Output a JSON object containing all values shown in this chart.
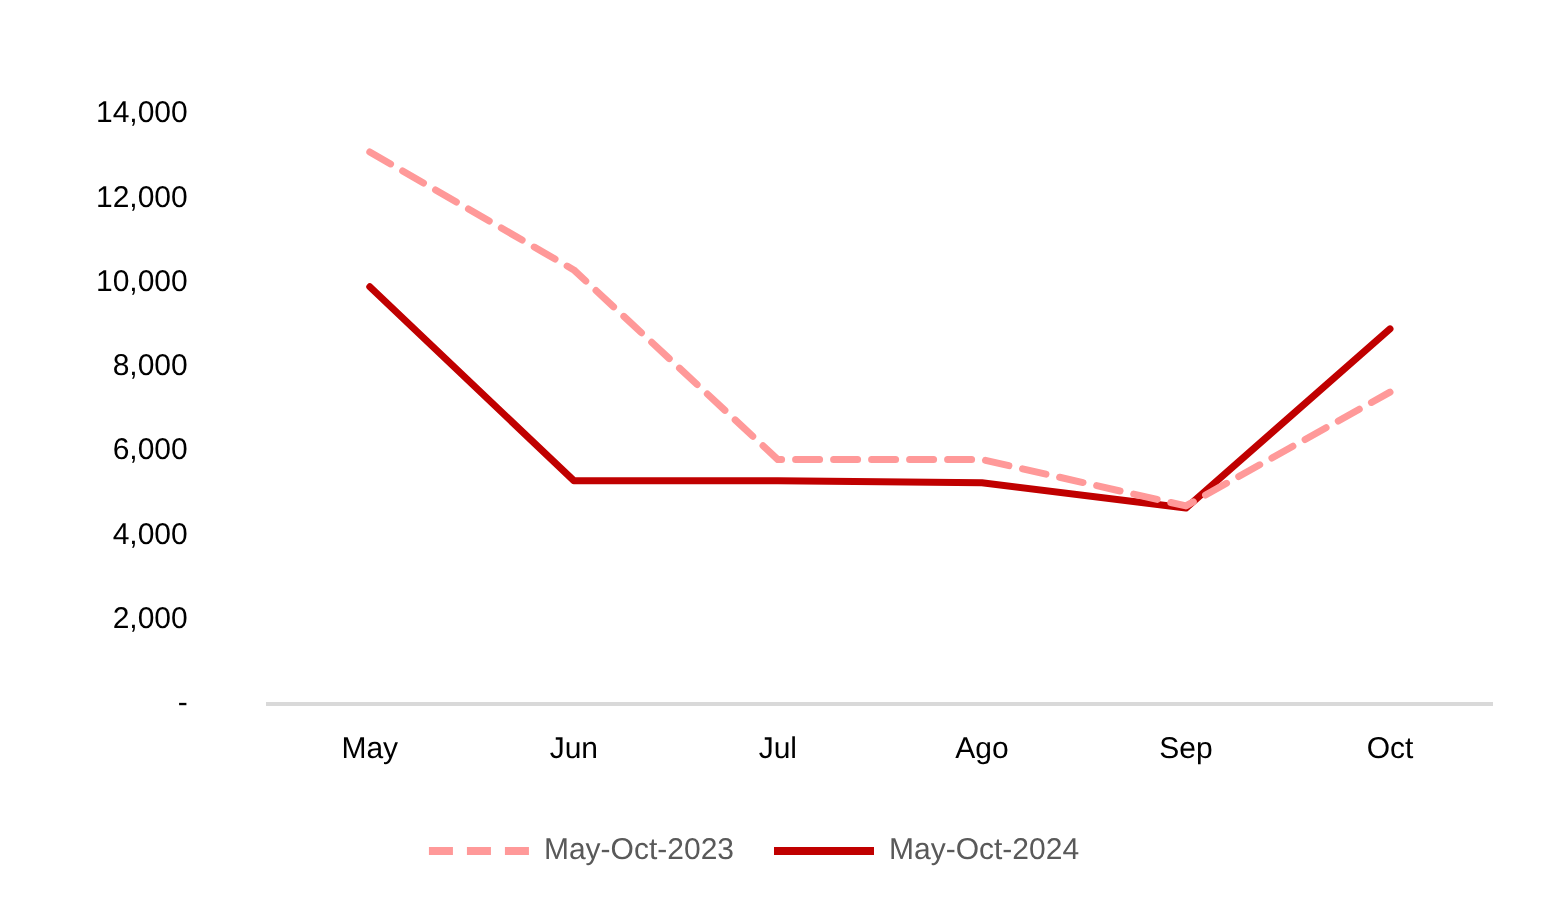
{
  "chart_data": {
    "type": "line",
    "categories": [
      "May",
      "Jun",
      "Jul",
      "Ago",
      "Sep",
      "Oct"
    ],
    "series": [
      {
        "name": "May-Oct-2023",
        "color": "#ff9999",
        "line_style": "dashed",
        "values": [
          13100,
          10300,
          5800,
          5800,
          4700,
          7400
        ]
      },
      {
        "name": "May-Oct-2024",
        "color": "#c00000",
        "line_style": "solid",
        "values": [
          9900,
          5300,
          5300,
          5250,
          4650,
          8900
        ]
      }
    ],
    "ylim": [
      0,
      14000
    ],
    "yticks": [
      {
        "value": 0,
        "label": "-"
      },
      {
        "value": 2000,
        "label": "2,000"
      },
      {
        "value": 4000,
        "label": "4,000"
      },
      {
        "value": 6000,
        "label": "6,000"
      },
      {
        "value": 8000,
        "label": "8,000"
      },
      {
        "value": 10000,
        "label": "10,000"
      },
      {
        "value": 12000,
        "label": "12,000"
      },
      {
        "value": 14000,
        "label": "14,000"
      }
    ],
    "grid": false,
    "legend": "bottom",
    "marker": "none"
  }
}
